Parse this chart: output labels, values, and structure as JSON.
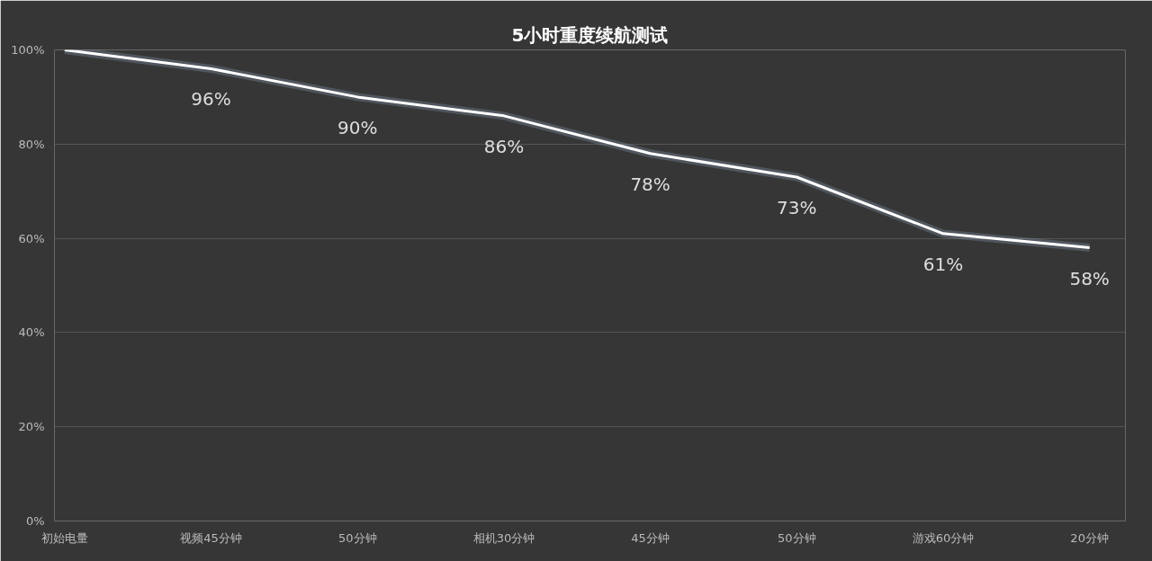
{
  "chart_data": {
    "type": "line",
    "title": "5小时重度续航测试",
    "categories": [
      "初始电量",
      "视频45分钟",
      "50分钟",
      "相机30分钟",
      "45分钟",
      "50分钟",
      "游戏60分钟",
      "20分钟"
    ],
    "series": [
      {
        "color": "#ffffff",
        "values": [
          100,
          96,
          90,
          86,
          78,
          73,
          61,
          58
        ],
        "value_labels": [
          null,
          "96%",
          "90%",
          "86%",
          "78%",
          "73%",
          "61%",
          "58%"
        ]
      }
    ],
    "ylim": [
      0,
      100
    ],
    "yticks": [
      {
        "value": 0,
        "label": "0%"
      },
      {
        "value": 20,
        "label": "20%"
      },
      {
        "value": 40,
        "label": "40%"
      },
      {
        "value": 60,
        "label": "60%"
      },
      {
        "value": 80,
        "label": "80%"
      },
      {
        "value": 100,
        "label": "100%"
      }
    ],
    "grid": "y",
    "marker": "none",
    "line_style": "solid"
  }
}
